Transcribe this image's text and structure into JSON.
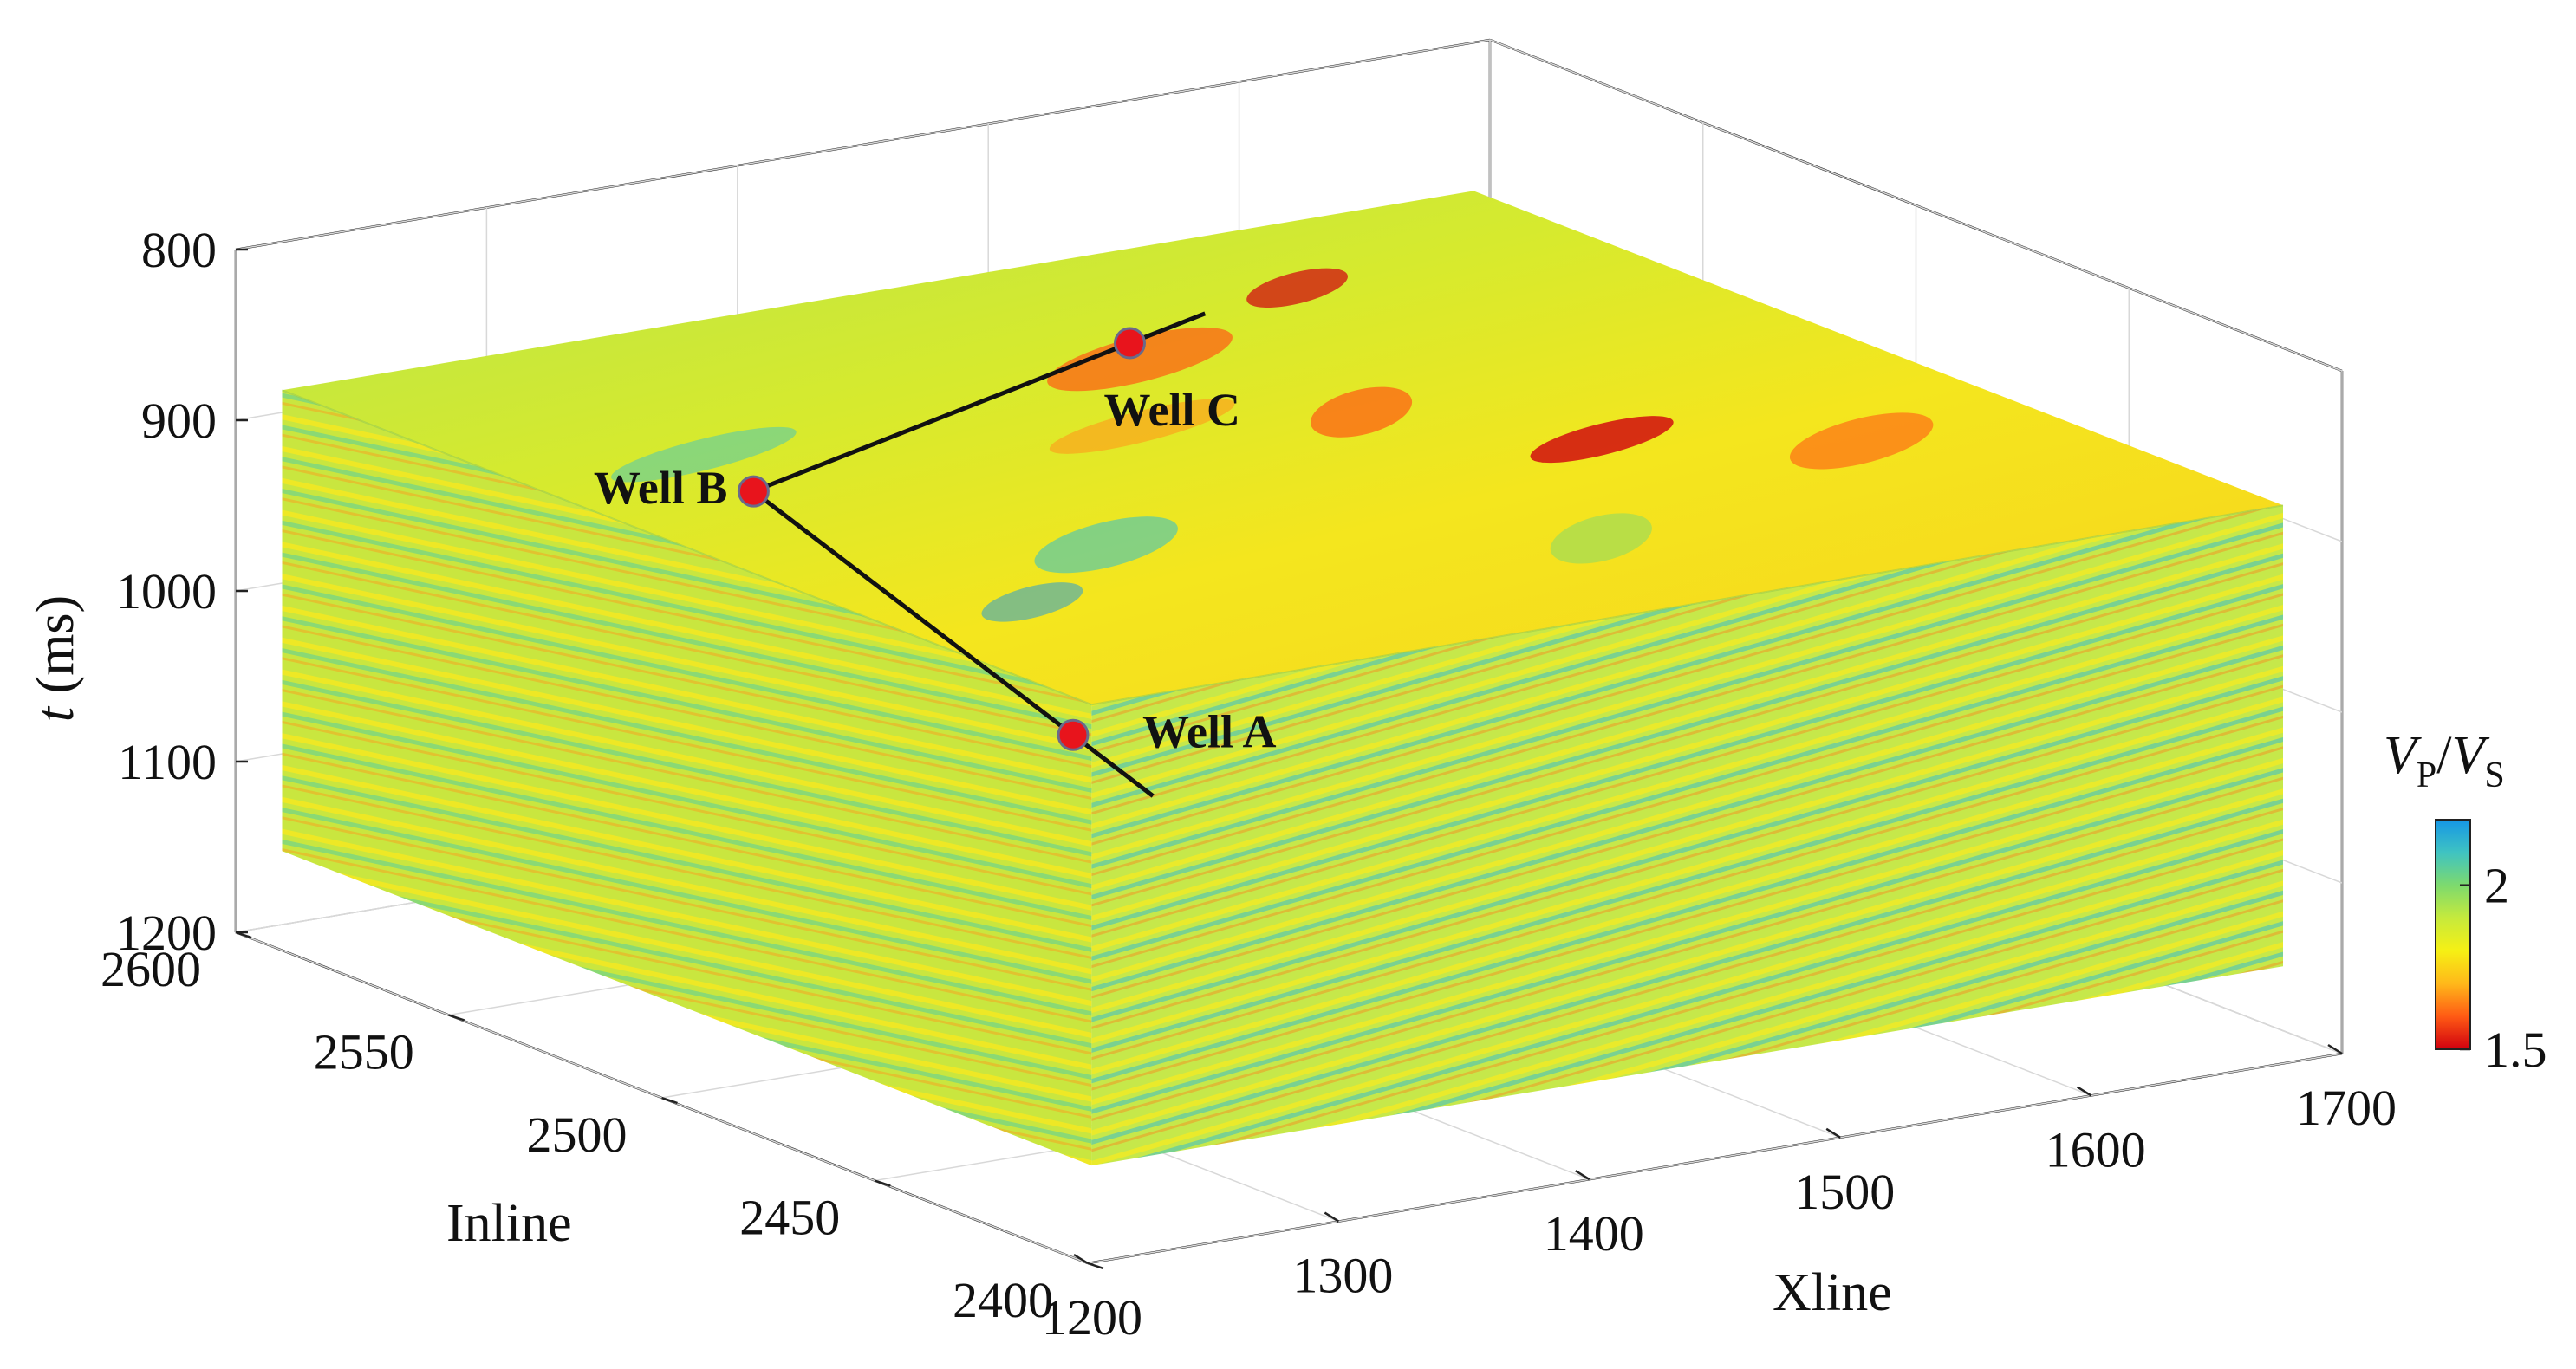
{
  "chart_data": {
    "type": "volume-3d",
    "axes": {
      "inline": {
        "label": "Inline",
        "range": [
          2400,
          2600
        ],
        "ticks": [
          2400,
          2450,
          2500,
          2550,
          2600
        ]
      },
      "xline": {
        "label": "Xline",
        "range": [
          1200,
          1700
        ],
        "ticks": [
          1200,
          1300,
          1400,
          1500,
          1600,
          1700
        ]
      },
      "t": {
        "label_var": "t",
        "label_unit": " (ms)",
        "range": [
          800,
          1200
        ],
        "ticks": [
          800,
          900,
          1000,
          1100,
          1200
        ],
        "direction": "down"
      }
    },
    "grid": true,
    "colorbar": {
      "label_v1": "V",
      "label_sub1": "P",
      "label_sep": "/",
      "label_v2": "V",
      "label_sub2": "S",
      "range": [
        1.5,
        2.2
      ],
      "ticks": [
        {
          "value": 2,
          "label": "2"
        },
        {
          "value": 1.5,
          "label": "1.5"
        }
      ],
      "colormap": [
        "#d0000f",
        "#ff5a14",
        "#ffb81a",
        "#f6f014",
        "#c6ea3c",
        "#7dda6e",
        "#3fc3c2",
        "#1596e6"
      ],
      "placement": "right"
    },
    "wells": [
      {
        "name": "Well A",
        "inline": 2480,
        "xline": 1330,
        "t": 1000
      },
      {
        "name": "Well B",
        "inline": 2555,
        "xline": 1330,
        "t": 930
      },
      {
        "name": "Well C",
        "inline": 2555,
        "xline": 1480,
        "t": 880
      }
    ],
    "well_path": [
      "Well A",
      "Well B",
      "Well C"
    ],
    "top_surface_t": 880,
    "volume_bottom_t": 1150
  }
}
